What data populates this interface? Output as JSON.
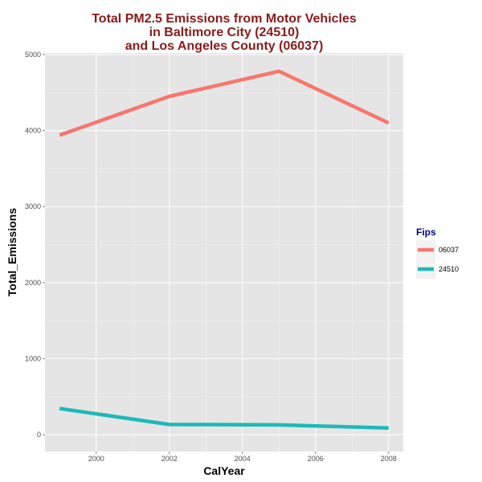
{
  "chart_data": {
    "type": "line",
    "title": [
      "Total PM2.5 Emissions from Motor Vehicles",
      "in Baltimore City (24510)",
      "and Los Angeles County (06037)"
    ],
    "xlabel": "CalYear",
    "ylabel": "Total_Emissions",
    "xlim": [
      1998.6,
      2008.4
    ],
    "ylim": [
      -220,
      5020
    ],
    "x_ticks": [
      2000,
      2002,
      2004,
      2006,
      2008
    ],
    "x_tick_labels": [
      "2000",
      "2002",
      "2004",
      "2006",
      "2008"
    ],
    "y_ticks": [
      0,
      1000,
      2000,
      3000,
      4000,
      5000
    ],
    "y_tick_labels": [
      "0",
      "1000",
      "2000",
      "3000",
      "4000",
      "5000"
    ],
    "grid": true,
    "legend": {
      "title": "Fips",
      "position": "right"
    },
    "x": [
      1999,
      2002,
      2005,
      2008
    ],
    "series": [
      {
        "name": "06037",
        "color": "#f8766d",
        "values": [
          3940,
          4450,
          4780,
          4100
        ]
      },
      {
        "name": "24510",
        "color": "#1fb8b8",
        "values": [
          345,
          135,
          130,
          88
        ]
      }
    ],
    "colors": {
      "panel": "#e5e5e5",
      "grid_major": "#ffffff",
      "grid_minor": "#f2f2f2"
    }
  }
}
